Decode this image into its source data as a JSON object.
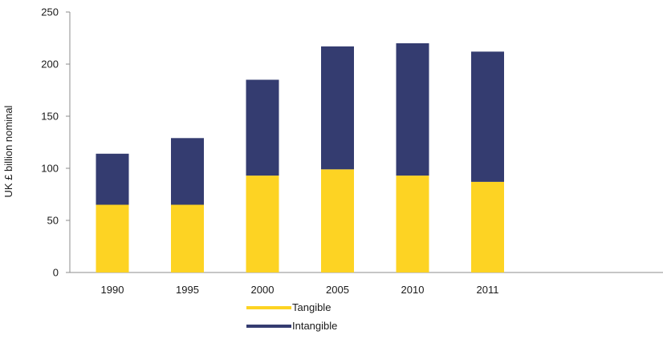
{
  "chart_data": {
    "type": "bar",
    "stacked": true,
    "title": "",
    "xlabel": "",
    "ylabel": "UK £ billion nominal",
    "ylim": [
      0,
      250
    ],
    "yticks": [
      0,
      50,
      100,
      150,
      200,
      250
    ],
    "categories": [
      "1990",
      "1995",
      "2000",
      "2005",
      "2010",
      "2011"
    ],
    "series": [
      {
        "name": "Tangible",
        "color": "#fdd323",
        "values": [
          65,
          65,
          93,
          99,
          93,
          87
        ]
      },
      {
        "name": "Intangible",
        "color": "#343c70",
        "values": [
          49,
          64,
          92,
          118,
          127,
          125
        ]
      }
    ],
    "grid": false,
    "legend": "bottom-center"
  }
}
